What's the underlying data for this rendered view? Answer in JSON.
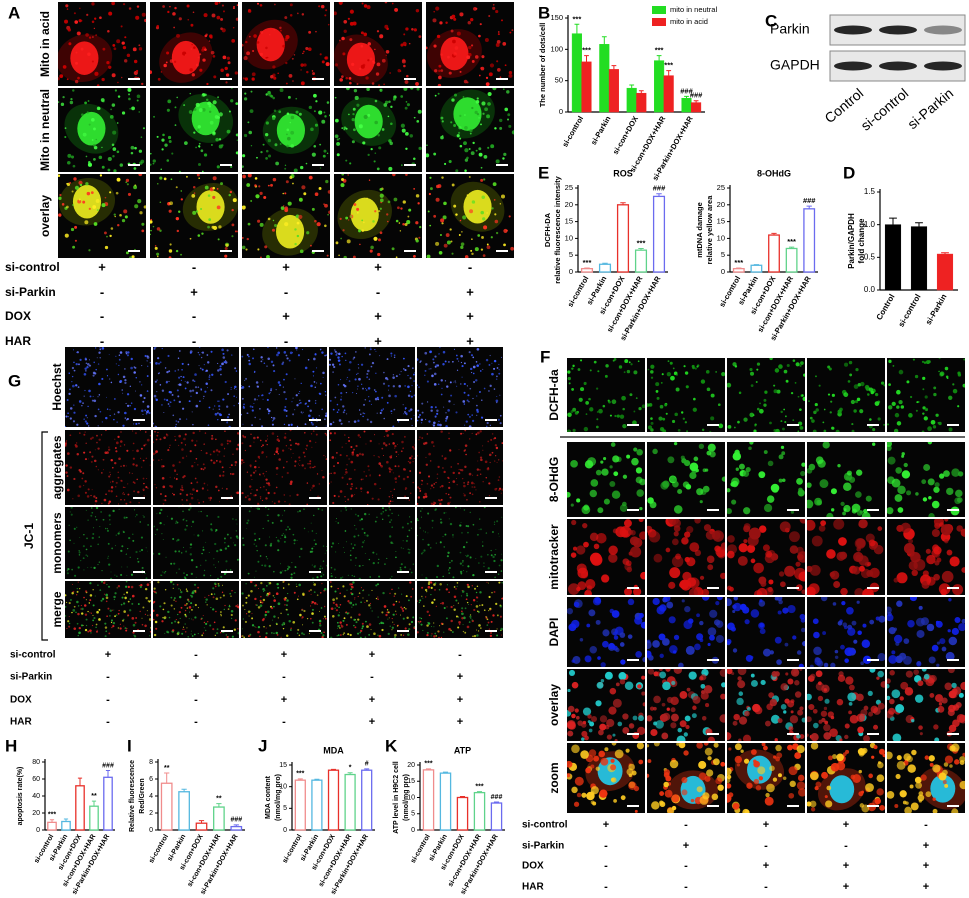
{
  "letters": [
    "A",
    "B",
    "C",
    "D",
    "E",
    "F",
    "G",
    "H",
    "I",
    "J",
    "K"
  ],
  "panel_A": {
    "rows": [
      "Mito in acid",
      "Mito in neutral",
      "overlay"
    ]
  },
  "panel_C": {
    "bands": [
      "Parkin",
      "GAPDH"
    ],
    "lanes": [
      "Control",
      "si-control",
      "si-Parkin"
    ]
  },
  "panel_F": {
    "rows": [
      "DCFH-da",
      "8-OHdG",
      "mitotracker",
      "DAPI",
      "overlay",
      "zoom"
    ]
  },
  "panel_G": {
    "rows": [
      "Hoechst",
      "aggregates",
      "monomers",
      "merge"
    ],
    "group": "JC-1"
  },
  "conditions": {
    "names": [
      "si-control",
      "si-Parkin",
      "DOX",
      "HAR"
    ],
    "signs": [
      [
        "+",
        "-",
        "+",
        "+",
        "-"
      ],
      [
        "-",
        "+",
        "-",
        "-",
        "+"
      ],
      [
        "-",
        "-",
        "+",
        "+",
        "+"
      ],
      [
        "-",
        "-",
        "-",
        "+",
        "+"
      ]
    ]
  },
  "chart_data": [
    {
      "type": "bar",
      "ylabel": [
        "The number of dots/cell"
      ],
      "bar_style": "solid",
      "categories": [
        "si-control",
        "si-Parkin",
        "si-con+DOX",
        "si-con+DOX+HAR",
        "si-Parkin+DOX+HAR"
      ],
      "series": [
        {
          "name": "mito in neutral",
          "color": "#22dd22",
          "values": [
            125,
            108,
            38,
            82,
            22
          ],
          "errors": [
            15,
            12,
            5,
            8,
            3
          ],
          "significance": [
            "***",
            null,
            null,
            "***",
            "###"
          ]
        },
        {
          "name": "mito in acid",
          "color": "#ee2222",
          "values": [
            80,
            68,
            30,
            58,
            15
          ],
          "errors": [
            10,
            6,
            4,
            8,
            3
          ],
          "significance": [
            "***",
            null,
            null,
            "***",
            "###"
          ]
        }
      ],
      "ylim": [
        0,
        150
      ],
      "yticks": [
        0,
        50,
        100,
        150
      ]
    },
    {
      "type": "bar",
      "title": "ROS",
      "ylabel": [
        "DCFH-DA",
        "relative fluorescence intensity"
      ],
      "bar_style": "outline",
      "categories": [
        "si-control",
        "si-Parkin",
        "si-con+DOX",
        "si-con+DOX+HAR",
        "si-Parkin+DOX+HAR"
      ],
      "values": [
        1,
        2.3,
        20,
        6.5,
        22.5
      ],
      "errors": [
        0.2,
        0.3,
        0.6,
        0.5,
        0.8
      ],
      "colors": [
        "#f08c8c",
        "#55b8e0",
        "#e8302a",
        "#5fd38a",
        "#6b6bef"
      ],
      "significance": [
        "***",
        null,
        null,
        "***",
        "###"
      ],
      "ylim": [
        0,
        25
      ],
      "yticks": [
        0,
        5,
        10,
        15,
        20,
        25
      ]
    },
    {
      "type": "bar",
      "title": "8-OHdG",
      "ylabel": [
        "mtDNA damage",
        "relative yellow area"
      ],
      "bar_style": "outline",
      "categories": [
        "si-control",
        "si-Parkin",
        "si-con+DOX",
        "si-con+DOX+HAR",
        "si-Parkin+DOX+HAR"
      ],
      "values": [
        1,
        2,
        11,
        7,
        18.8
      ],
      "errors": [
        0.2,
        0.2,
        0.5,
        0.4,
        0.8
      ],
      "colors": [
        "#f08c8c",
        "#55b8e0",
        "#e8302a",
        "#5fd38a",
        "#6b6bef"
      ],
      "significance": [
        "***",
        null,
        null,
        "***",
        "###"
      ],
      "ylim": [
        0,
        25
      ],
      "yticks": [
        0,
        5,
        10,
        15,
        20,
        25
      ]
    },
    {
      "type": "bar",
      "ylabel": [
        "Parkin/GAPDH",
        "fold change"
      ],
      "bar_style": "solid",
      "categories": [
        "Control",
        "si-control",
        "si-Parkin"
      ],
      "values": [
        1.0,
        0.97,
        0.55
      ],
      "errors": [
        0.1,
        0.06,
        0.02
      ],
      "colors": [
        "#000000",
        "#000000",
        "#ee2222"
      ],
      "ylim": [
        0,
        1.5
      ],
      "yticks": [
        {
          "value": 0,
          "label": "0.0"
        },
        {
          "value": 0.5,
          "label": "0.5"
        },
        {
          "value": 1,
          "label": "1.0"
        },
        {
          "value": 1.5,
          "label": "1.5"
        }
      ]
    },
    {
      "type": "bar",
      "ylabel": [
        "apoptosis rate(%)"
      ],
      "bar_style": "outline",
      "categories": [
        "si-control",
        "si-Parkin",
        "si-con+DOX",
        "si-con+DOX+HAR",
        "si-Parkin+DOX+HAR"
      ],
      "values": [
        9,
        10,
        52,
        28,
        62
      ],
      "errors": [
        3,
        3,
        9,
        6,
        8
      ],
      "colors": [
        "#f08c8c",
        "#55b8e0",
        "#e8302a",
        "#5fd38a",
        "#6b6bef"
      ],
      "significance": [
        "***",
        null,
        null,
        "**",
        "###"
      ],
      "ylim": [
        0,
        80
      ],
      "yticks": [
        0,
        20,
        40,
        60,
        80
      ]
    },
    {
      "type": "bar",
      "ylabel": [
        "Relative fluorescence",
        "Red/Green"
      ],
      "bar_style": "outline",
      "categories": [
        "si-control",
        "si-Parkin",
        "si-con+DOX",
        "si-con+DOX+HAR",
        "si-Parkin+DOX+HAR"
      ],
      "values": [
        5.5,
        4.5,
        0.8,
        2.7,
        0.4
      ],
      "errors": [
        1.2,
        0.3,
        0.3,
        0.4,
        0.2
      ],
      "colors": [
        "#f08c8c",
        "#55b8e0",
        "#e8302a",
        "#5fd38a",
        "#6b6bef"
      ],
      "significance": [
        "**",
        null,
        null,
        "**",
        "###"
      ],
      "ylim": [
        0,
        8
      ],
      "yticks": [
        0,
        2,
        4,
        6,
        8
      ]
    },
    {
      "type": "bar",
      "title": "MDA",
      "ylabel": [
        "MDA content",
        "(nmol/mg pro)"
      ],
      "bar_style": "outline",
      "categories": [
        "si-control",
        "si-Parkin",
        "si-con+DOX",
        "si-con+DOX+HAR",
        "si-Parkin+DOX+HAR"
      ],
      "values": [
        11.5,
        11.5,
        13.8,
        12.8,
        13.8
      ],
      "errors": [
        0.3,
        0.2,
        0.2,
        0.4,
        0.3
      ],
      "colors": [
        "#f08c8c",
        "#55b8e0",
        "#e8302a",
        "#5fd38a",
        "#6b6bef"
      ],
      "significance": [
        "***",
        null,
        null,
        "*",
        "#"
      ],
      "ylim": [
        0,
        15
      ],
      "yticks": [
        0,
        5,
        10,
        15
      ]
    },
    {
      "type": "bar",
      "title": "ATP",
      "ylabel": [
        "ATP level in H9C2 cell",
        "(nmol/mg pro)"
      ],
      "bar_style": "outline",
      "categories": [
        "si-control",
        "si-Parkin",
        "si-con+DOX",
        "si-con+DOX+HAR",
        "si-Parkin+DOX+HAR"
      ],
      "values": [
        18.5,
        17.5,
        10,
        11.5,
        8.3
      ],
      "errors": [
        0.3,
        0.3,
        0.3,
        0.3,
        0.3
      ],
      "colors": [
        "#f08c8c",
        "#55b8e0",
        "#e8302a",
        "#5fd38a",
        "#6b6bef"
      ],
      "significance": [
        "***",
        null,
        null,
        "***",
        "###"
      ],
      "ylim": [
        0,
        20
      ],
      "yticks": [
        0,
        5,
        10,
        15,
        20
      ]
    }
  ]
}
